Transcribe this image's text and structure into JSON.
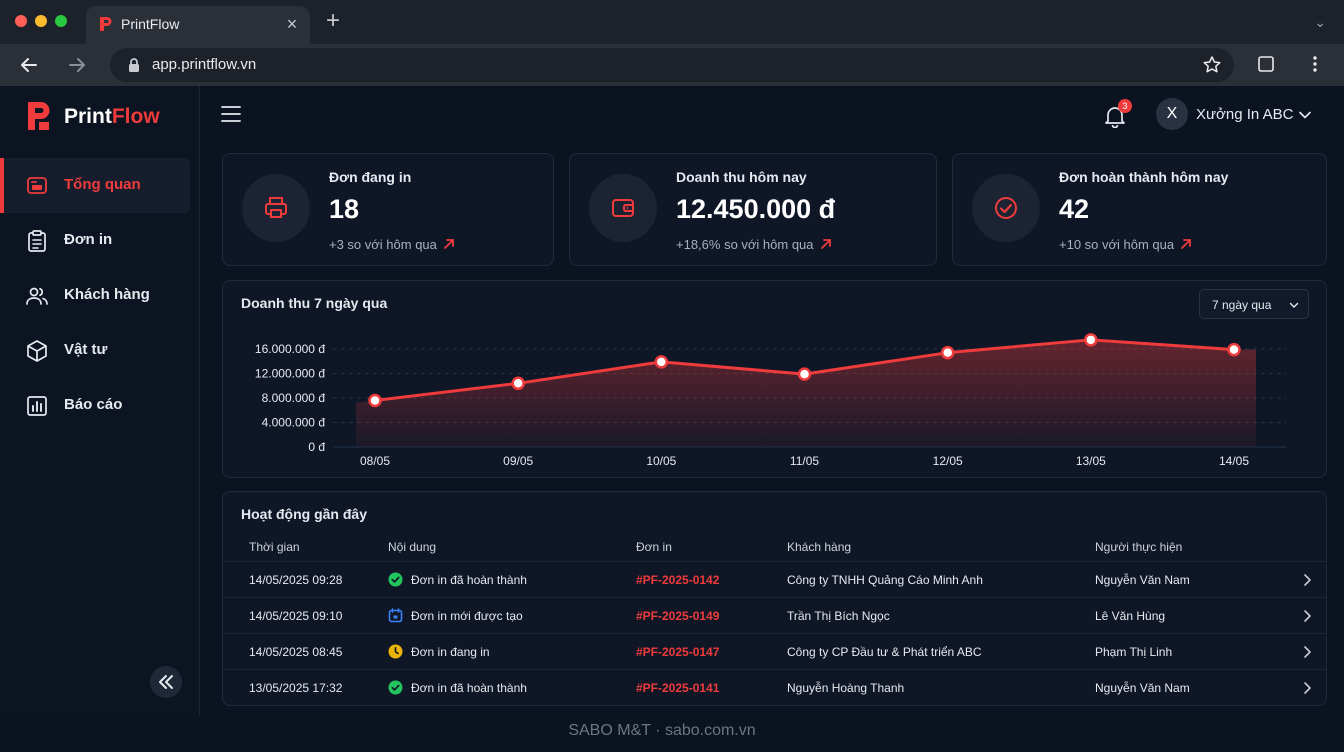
{
  "browser": {
    "tab_title": "PrintFlow",
    "url": "app.printflow.vn"
  },
  "brand": {
    "name_part1": "Print",
    "name_part2": "Flow"
  },
  "sidebar": {
    "items": [
      {
        "label": "Tổng quan",
        "icon": "dashboard-icon",
        "active": true
      },
      {
        "label": "Đơn in",
        "icon": "clipboard-icon",
        "active": false
      },
      {
        "label": "Khách hàng",
        "icon": "users-icon",
        "active": false
      },
      {
        "label": "Vật tư",
        "icon": "box-icon",
        "active": false
      },
      {
        "label": "Báo cáo",
        "icon": "bar-chart-icon",
        "active": false
      }
    ]
  },
  "header": {
    "notification_count": "3",
    "avatar_initial": "X",
    "user_name": "Xưởng In ABC"
  },
  "stats": [
    {
      "label": "Đơn đang in",
      "value": "18",
      "delta": "+3 so với hôm qua",
      "icon": "printer-icon"
    },
    {
      "label": "Doanh thu hôm nay",
      "value": "12.450.000 đ",
      "delta": "+18,6% so với hôm qua",
      "icon": "wallet-icon"
    },
    {
      "label": "Đơn hoàn thành hôm nay",
      "value": "42",
      "delta": "+10 so với hôm qua",
      "icon": "check-circle-icon"
    }
  ],
  "revenue_chart": {
    "range_label": "7 ngày qua"
  },
  "chart_data": {
    "type": "area",
    "title": "Doanh thu 7 ngày qua",
    "categories": [
      "08/05",
      "09/05",
      "10/05",
      "11/05",
      "12/05",
      "13/05",
      "14/05"
    ],
    "values": [
      7600000,
      10400000,
      13900000,
      11900000,
      15400000,
      17500000,
      15900000
    ],
    "yticks": [
      "0 đ",
      "4.000.000 đ",
      "8.000.000 đ",
      "12.000.000 đ",
      "16.000.000 đ"
    ],
    "ylim": [
      0,
      20000000
    ],
    "xlabel": "",
    "ylabel": "",
    "grid": true,
    "color": "#ef3b3b"
  },
  "activity": {
    "title": "Hoạt động gần đây",
    "columns": [
      "Thời gian",
      "Nội dung",
      "Đơn in",
      "Khách hàng",
      "Người thực hiện"
    ],
    "rows": [
      {
        "time": "14/05/2025 09:28",
        "content": "Đơn in đã hoàn thành",
        "status": "completed",
        "status_color": "#22c55e",
        "order": "#PF-2025-0142",
        "customer": "Công ty TNHH Quảng Cáo Minh Anh",
        "actor": "Nguyễn Văn Nam"
      },
      {
        "time": "14/05/2025 09:10",
        "content": "Đơn in mới được tạo",
        "status": "new",
        "status_color": "#3b82f6",
        "order": "#PF-2025-0149",
        "customer": "Trần Thị Bích Ngọc",
        "actor": "Lê Văn Hùng"
      },
      {
        "time": "14/05/2025 08:45",
        "content": "Đơn in đang in",
        "status": "printing",
        "status_color": "#eab308",
        "order": "#PF-2025-0147",
        "customer": "Công ty CP Đầu tư & Phát triển ABC",
        "actor": "Phạm Thị Linh"
      },
      {
        "time": "13/05/2025 17:32",
        "content": "Đơn in đã hoàn thành",
        "status": "completed",
        "status_color": "#22c55e",
        "order": "#PF-2025-0141",
        "customer": "Nguyễn Hoàng Thanh",
        "actor": "Nguyễn Văn Nam"
      }
    ]
  },
  "footer_note": "SABO M&T · sabo.com.vn"
}
